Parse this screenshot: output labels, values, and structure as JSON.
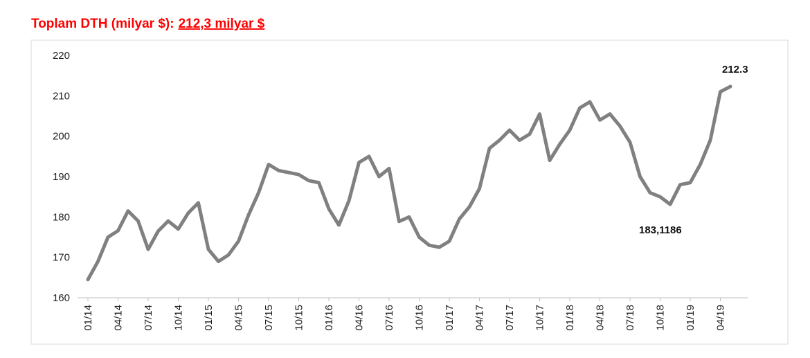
{
  "chart_data": {
    "type": "line",
    "title": "Toplam DTH (milyar $):",
    "title_highlight": "212,3 milyar $",
    "categories": [
      "01/14",
      null,
      null,
      "04/14",
      null,
      null,
      "07/14",
      null,
      null,
      "10/14",
      null,
      null,
      "01/15",
      null,
      null,
      "04/15",
      null,
      null,
      "07/15",
      null,
      null,
      "10/15",
      null,
      null,
      "01/16",
      null,
      null,
      "04/16",
      null,
      null,
      "07/16",
      null,
      null,
      "10/16",
      null,
      null,
      "01/17",
      null,
      null,
      "04/17",
      null,
      null,
      "07/17",
      null,
      null,
      "10/17",
      null,
      null,
      "01/18",
      null,
      null,
      "04/18",
      null,
      null,
      "07/18",
      null,
      null,
      "10/18",
      null,
      null,
      "01/19",
      null,
      null,
      "04/19",
      null
    ],
    "series": [
      {
        "name": "Toplam DTH",
        "color": "#808080",
        "values": [
          164.5,
          169,
          175,
          176.6,
          181.5,
          179,
          172,
          176.5,
          179,
          177,
          181,
          183.5,
          172,
          169,
          170.6,
          174,
          180.5,
          186,
          193,
          191.5,
          191,
          190.5,
          189,
          188.5,
          182,
          178,
          184,
          193.5,
          195,
          190,
          192,
          178.9,
          180,
          175,
          173,
          172.5,
          174,
          179.5,
          182.5,
          187,
          197,
          199,
          201.5,
          199,
          200.5,
          205.5,
          194,
          198,
          201.5,
          207,
          208.5,
          204,
          205.5,
          202.5,
          198.5,
          190,
          186,
          185,
          183.1186,
          188,
          188.5,
          193,
          199,
          211,
          212.3
        ]
      }
    ],
    "ylim": [
      160,
      220
    ],
    "yticks": [
      160,
      170,
      180,
      190,
      200,
      210,
      220
    ],
    "grid": false,
    "annotations": [
      {
        "text": "212.3",
        "index": 64
      },
      {
        "text": "183,1186",
        "index": 58
      }
    ]
  }
}
